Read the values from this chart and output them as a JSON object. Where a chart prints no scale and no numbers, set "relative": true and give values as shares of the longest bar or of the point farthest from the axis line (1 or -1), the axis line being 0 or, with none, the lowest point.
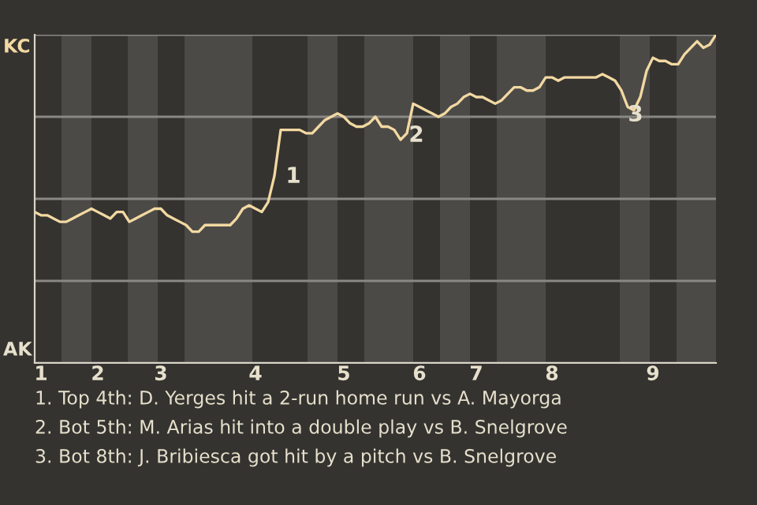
{
  "chart_data": {
    "type": "line",
    "relative": true,
    "categories": [
      null,
      "1",
      null,
      null,
      null,
      null,
      null,
      null,
      null,
      null,
      "2",
      null,
      null,
      null,
      null,
      null,
      null,
      null,
      null,
      null,
      "3",
      null,
      null,
      null,
      null,
      null,
      null,
      null,
      null,
      null,
      null,
      null,
      null,
      null,
      null,
      "4",
      null,
      null,
      null,
      null,
      null,
      null,
      null,
      null,
      null,
      null,
      null,
      null,
      null,
      "5",
      null,
      null,
      null,
      null,
      null,
      null,
      null,
      null,
      null,
      null,
      null,
      "6",
      null,
      null,
      null,
      null,
      null,
      null,
      null,
      null,
      "7",
      null,
      null,
      null,
      null,
      null,
      null,
      null,
      null,
      null,
      null,
      null,
      "8",
      null,
      null,
      null,
      null,
      null,
      null,
      null,
      null,
      null,
      null,
      null,
      null,
      null,
      null,
      null,
      "9",
      null,
      null,
      null,
      null,
      null,
      null,
      null,
      null,
      null,
      null
    ],
    "series": [
      {
        "color": "#f2d9a2",
        "values": [
          0.46,
          0.45,
          0.45,
          0.44,
          0.43,
          0.43,
          0.44,
          0.45,
          0.46,
          0.47,
          0.46,
          0.45,
          0.44,
          0.46,
          0.46,
          0.43,
          0.44,
          0.45,
          0.46,
          0.47,
          0.47,
          0.45,
          0.44,
          0.43,
          0.42,
          0.4,
          0.4,
          0.42,
          0.42,
          0.42,
          0.42,
          0.42,
          0.44,
          0.47,
          0.48,
          0.47,
          0.46,
          0.49,
          0.57,
          0.71,
          0.71,
          0.71,
          0.71,
          0.7,
          0.7,
          0.72,
          0.74,
          0.75,
          0.76,
          0.75,
          0.73,
          0.72,
          0.72,
          0.73,
          0.75,
          0.72,
          0.72,
          0.71,
          0.68,
          0.7,
          0.79,
          0.78,
          0.77,
          0.76,
          0.75,
          0.76,
          0.78,
          0.79,
          0.81,
          0.82,
          0.81,
          0.81,
          0.8,
          0.79,
          0.8,
          0.82,
          0.84,
          0.84,
          0.83,
          0.83,
          0.84,
          0.87,
          0.87,
          0.86,
          0.87,
          0.87,
          0.87,
          0.87,
          0.87,
          0.87,
          0.88,
          0.87,
          0.86,
          0.83,
          0.78,
          0.77,
          0.81,
          0.89,
          0.93,
          0.92,
          0.92,
          0.91,
          0.91,
          0.94,
          0.96,
          0.98,
          0.96,
          0.97,
          1.0
        ]
      }
    ],
    "grid": "y",
    "marker": "none",
    "line_style": "solid",
    "annotations": [
      "KC",
      "AK",
      "1",
      "2",
      "3",
      "1. Top 4th: D. Yerges hit a 2-run home run vs A. Mayorga",
      "2. Bot 5th: M. Arias hit into a double play vs B. Snelgrove",
      "3. Bot 8th: J. Bribiesca got hit by a pitch vs B. Snelgrove"
    ]
  }
}
